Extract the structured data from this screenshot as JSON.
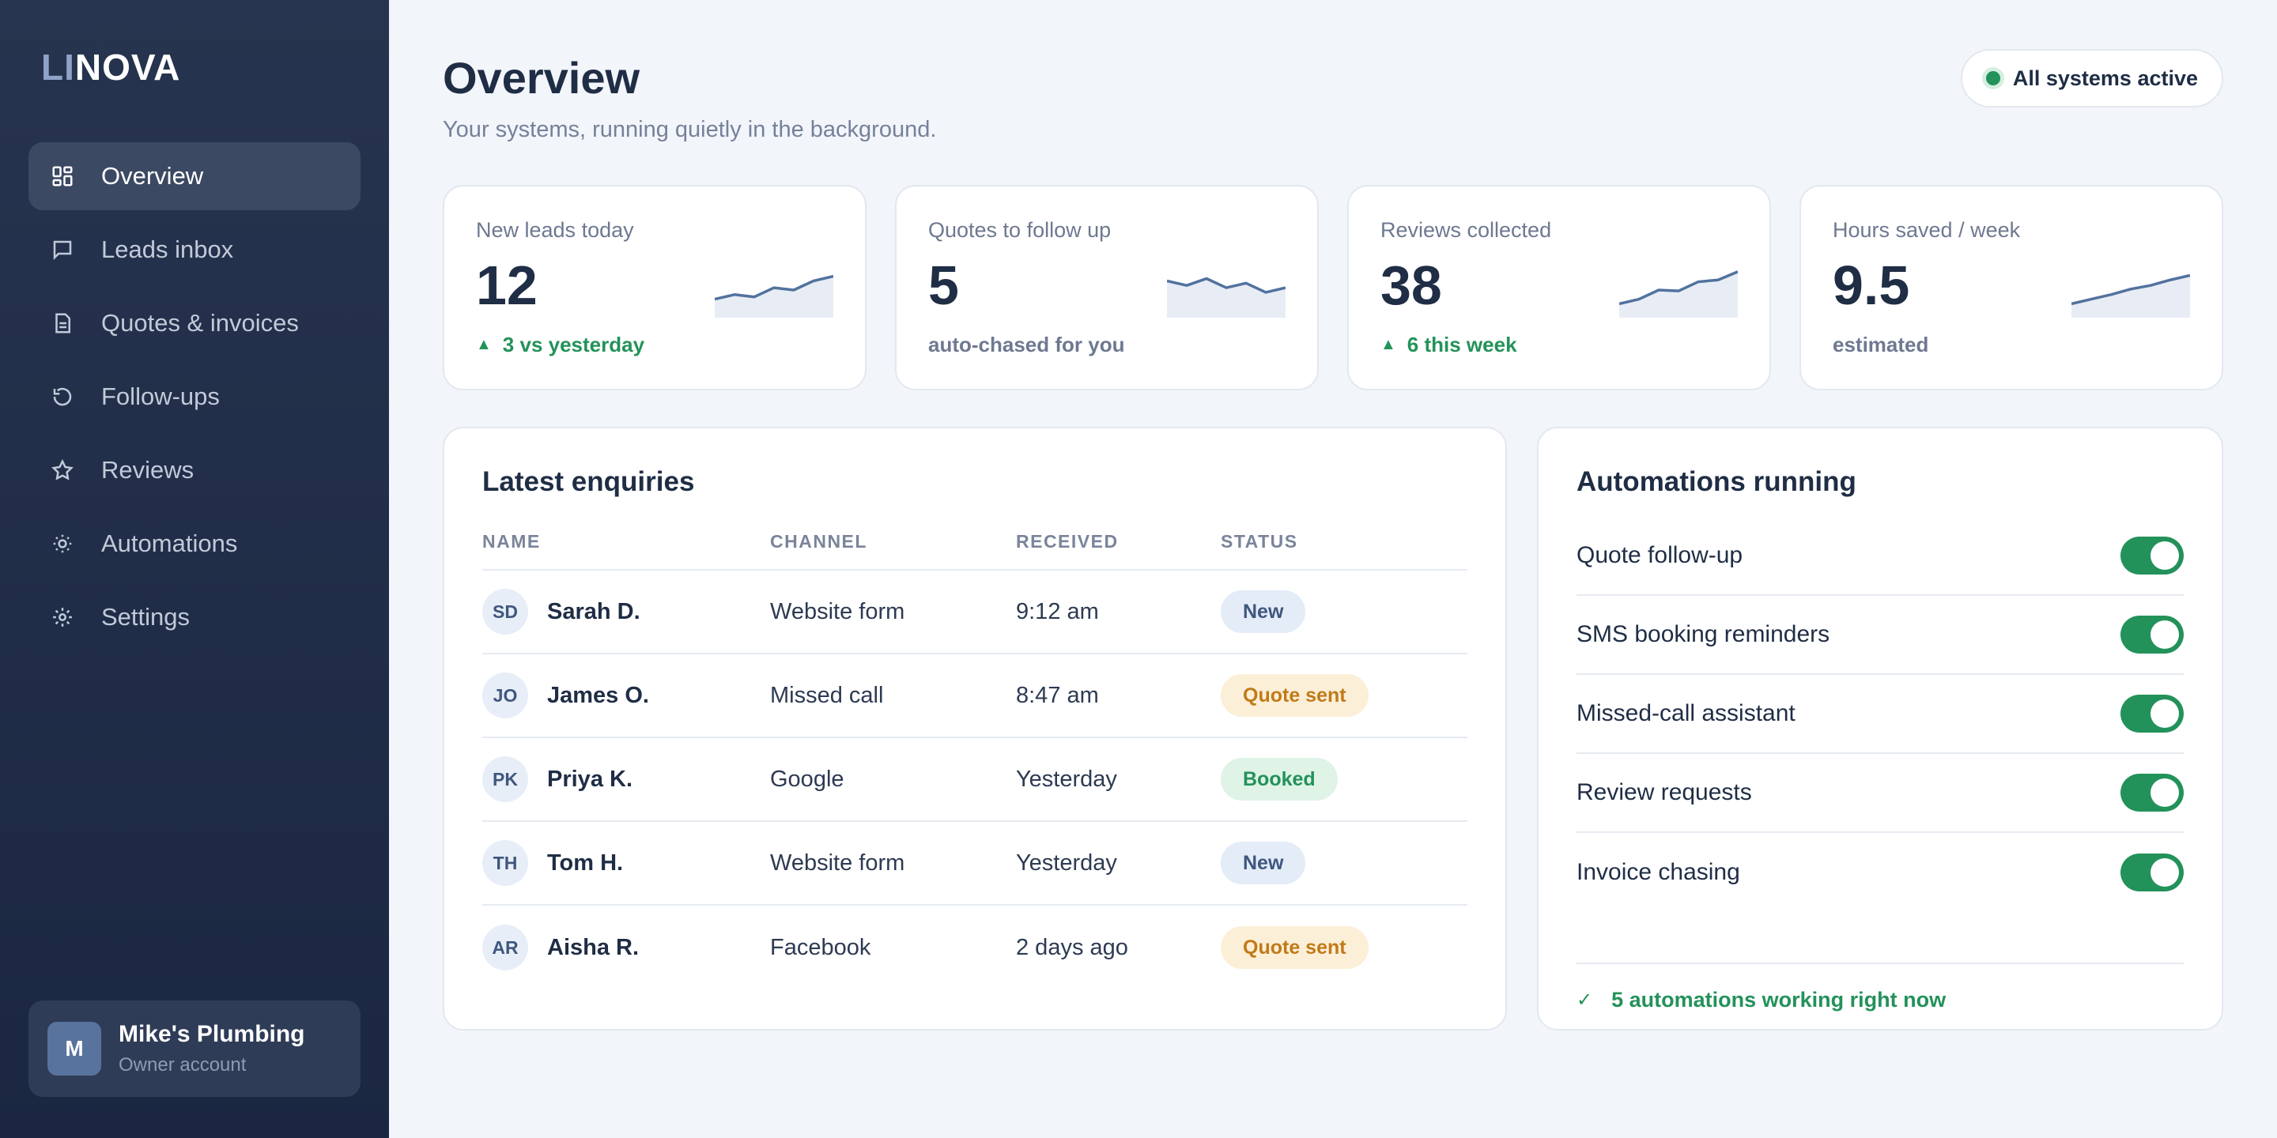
{
  "brand": {
    "logo_prefix": "LI",
    "logo_suffix": "NOVA"
  },
  "sidebar": {
    "items": [
      {
        "label": "Overview",
        "icon": "grid-icon",
        "active": true
      },
      {
        "label": "Leads inbox",
        "icon": "message-icon"
      },
      {
        "label": "Quotes & invoices",
        "icon": "document-icon"
      },
      {
        "label": "Follow-ups",
        "icon": "refresh-icon"
      },
      {
        "label": "Reviews",
        "icon": "star-icon"
      },
      {
        "label": "Automations",
        "icon": "sun-icon"
      },
      {
        "label": "Settings",
        "icon": "gear-icon"
      }
    ],
    "account": {
      "initial": "M",
      "name": "Mike's Plumbing",
      "role": "Owner account"
    }
  },
  "header": {
    "title": "Overview",
    "subtitle": "Your systems, running quietly in the background.",
    "status": "All systems active"
  },
  "stats": [
    {
      "label": "New leads today",
      "value": "12",
      "foot": "3 vs yesterday",
      "foot_up": true,
      "trend": [
        3,
        4,
        3.5,
        5.5,
        5,
        7,
        8
      ]
    },
    {
      "label": "Quotes to follow up",
      "value": "5",
      "foot": "auto-chased for you",
      "foot_up": false,
      "trend": [
        7,
        6,
        7.5,
        5.5,
        6.5,
        4.5,
        5.5
      ]
    },
    {
      "label": "Reviews collected",
      "value": "38",
      "foot": "6 this week",
      "foot_up": true,
      "trend": [
        2,
        3,
        5,
        4.8,
        6.8,
        7.2,
        9
      ]
    },
    {
      "label": "Hours saved / week",
      "value": "9.5",
      "foot": "estimated",
      "foot_up": false,
      "trend": [
        2,
        3,
        4,
        5.2,
        6,
        7.2,
        8.2
      ]
    }
  ],
  "enquiries": {
    "title": "Latest enquiries",
    "columns": [
      "NAME",
      "CHANNEL",
      "RECEIVED",
      "STATUS"
    ],
    "rows": [
      {
        "initials": "SD",
        "name": "Sarah D.",
        "channel": "Website form",
        "received": "9:12 am",
        "status": "New",
        "status_kind": "new"
      },
      {
        "initials": "JO",
        "name": "James O.",
        "channel": "Missed call",
        "received": "8:47 am",
        "status": "Quote sent",
        "status_kind": "quote"
      },
      {
        "initials": "PK",
        "name": "Priya K.",
        "channel": "Google",
        "received": "Yesterday",
        "status": "Booked",
        "status_kind": "booked"
      },
      {
        "initials": "TH",
        "name": "Tom H.",
        "channel": "Website form",
        "received": "Yesterday",
        "status": "New",
        "status_kind": "new"
      },
      {
        "initials": "AR",
        "name": "Aisha R.",
        "channel": "Facebook",
        "received": "2 days ago",
        "status": "Quote sent",
        "status_kind": "quote"
      }
    ]
  },
  "automations": {
    "title": "Automations running",
    "items": [
      {
        "label": "Quote follow-up",
        "on": true
      },
      {
        "label": "SMS booking reminders",
        "on": true
      },
      {
        "label": "Missed-call assistant",
        "on": true
      },
      {
        "label": "Review requests",
        "on": true
      },
      {
        "label": "Invoice chasing",
        "on": true
      }
    ],
    "footer": "5 automations working right now"
  },
  "colors": {
    "sidebar_bg": "#27344f",
    "accent_green": "#23925a",
    "spark_line": "#52729e",
    "badge_quote": "#c17a18"
  }
}
